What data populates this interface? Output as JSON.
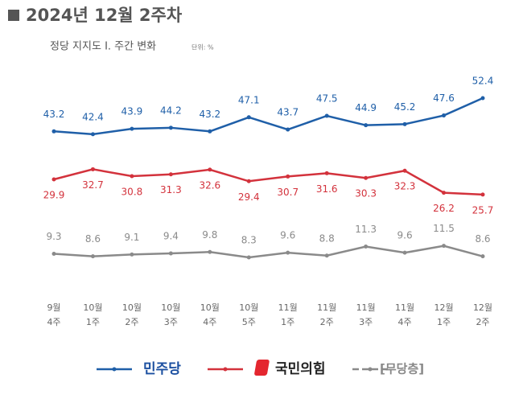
{
  "chart_data": {
    "type": "line",
    "title": "2024년 12월 2주차",
    "subtitle": "정당 지지도 Ⅰ. 주간 변화",
    "unit": "단위: %",
    "categories": [
      [
        "9월",
        "4주"
      ],
      [
        "10월",
        "1주"
      ],
      [
        "10월",
        "2주"
      ],
      [
        "10월",
        "3주"
      ],
      [
        "10월",
        "4주"
      ],
      [
        "10월",
        "5주"
      ],
      [
        "11월",
        "1주"
      ],
      [
        "11월",
        "2주"
      ],
      [
        "11월",
        "3주"
      ],
      [
        "11월",
        "4주"
      ],
      [
        "12월",
        "1주"
      ],
      [
        "12월",
        "2주"
      ]
    ],
    "series": [
      {
        "name": "민주당",
        "color": "#1f5fa8",
        "values": [
          43.2,
          42.4,
          43.9,
          44.2,
          43.2,
          47.1,
          43.7,
          47.5,
          44.9,
          45.2,
          47.6,
          52.4
        ]
      },
      {
        "name": "국민의힘",
        "color": "#d3323c",
        "values": [
          29.9,
          32.7,
          30.8,
          31.3,
          32.6,
          29.4,
          30.7,
          31.6,
          30.3,
          32.3,
          26.2,
          25.7
        ]
      },
      {
        "name": "[무당층]",
        "color": "#8a8a8a",
        "values": [
          9.3,
          8.6,
          9.1,
          9.4,
          9.8,
          8.3,
          9.6,
          8.8,
          11.3,
          9.6,
          11.5,
          8.6
        ]
      }
    ]
  }
}
